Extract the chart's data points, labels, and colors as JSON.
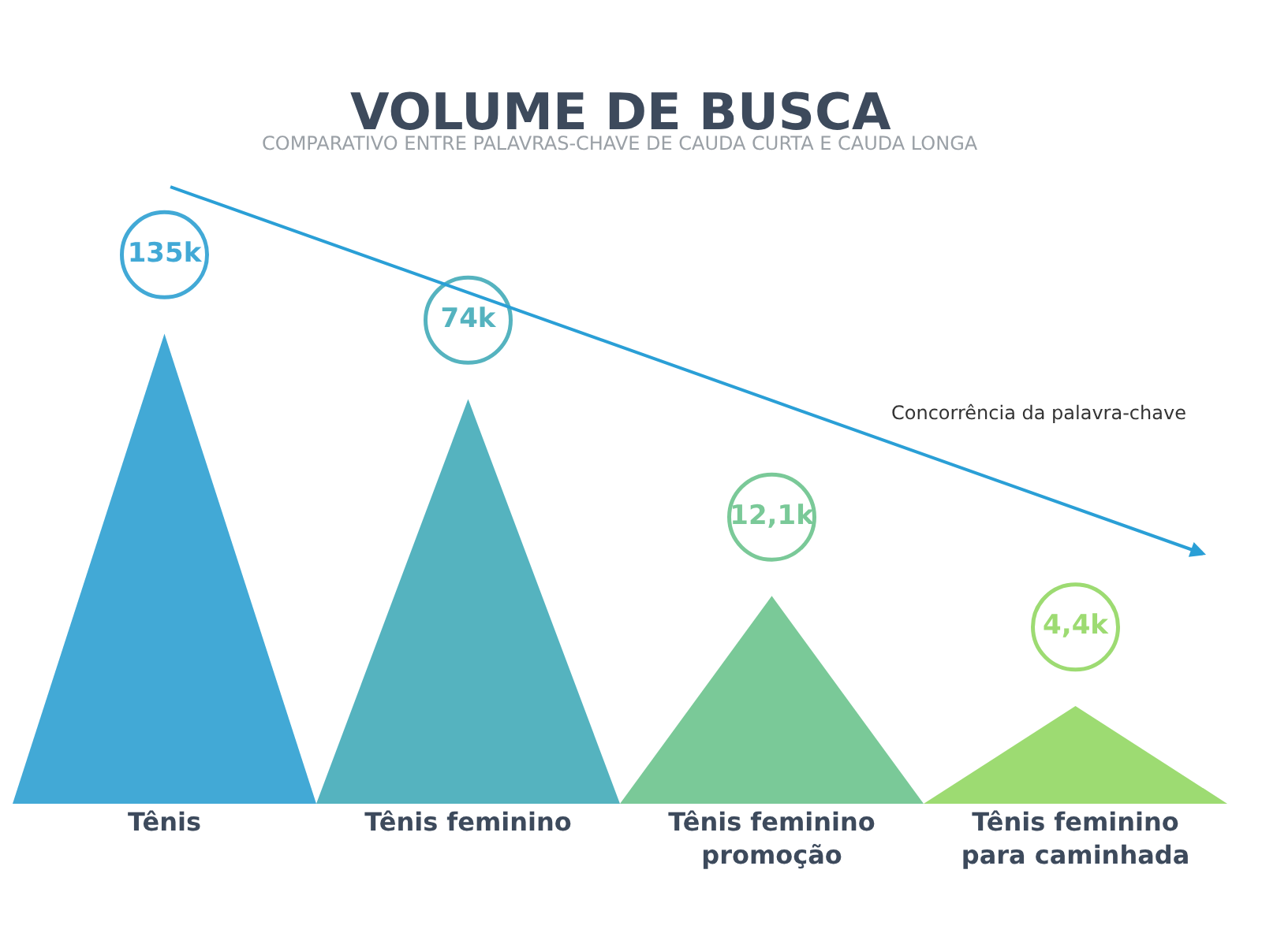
{
  "chart_data": {
    "type": "other",
    "title": "VOLUME DE BUSCA",
    "subtitle": "COMPARATIVO ENTRE PALAVRAS-CHAVE DE CAUDA CURTA E CAUDA LONGA",
    "categories": [
      "Tênis",
      "Tênis feminino",
      "Tênis feminino promoção",
      "Tênis feminino para caminhada"
    ],
    "values": [
      135,
      74,
      12.1,
      4.4
    ],
    "value_labels": [
      "135k",
      "74k",
      "12,1k",
      "4,4k"
    ],
    "colors": [
      "#42a9d6",
      "#55b3bf",
      "#7ac998",
      "#9ddb72"
    ],
    "annotations": [
      "Concorrência da palavra-chave"
    ]
  }
}
